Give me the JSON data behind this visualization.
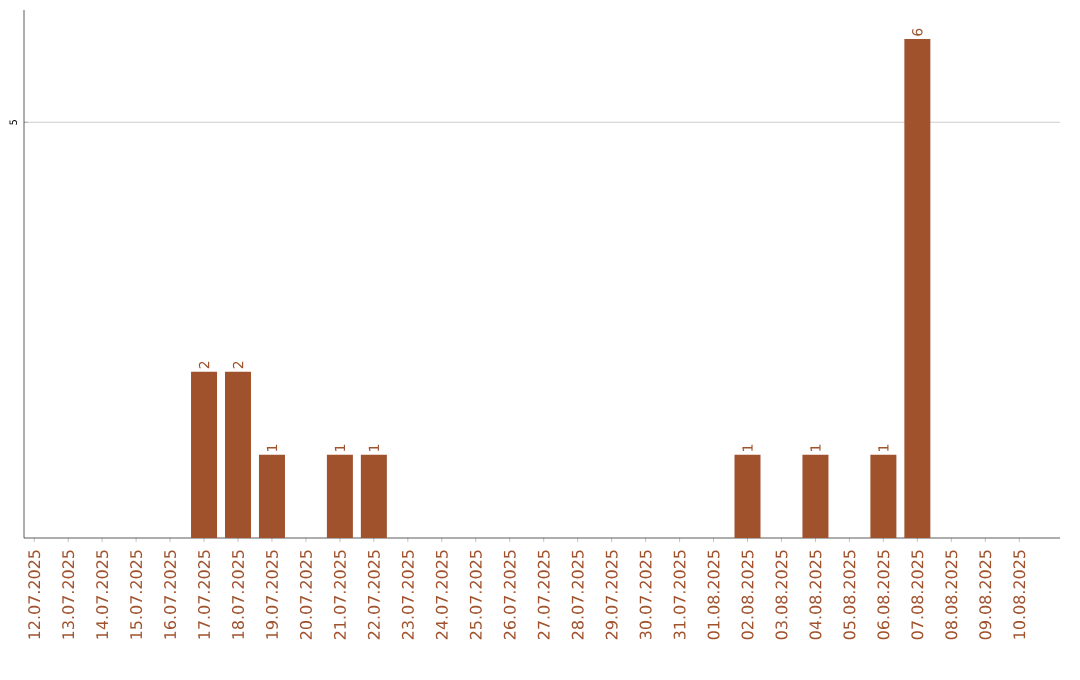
{
  "chart_data": {
    "type": "bar",
    "categories": [
      "12.07.2025",
      "13.07.2025",
      "14.07.2025",
      "15.07.2025",
      "16.07.2025",
      "17.07.2025",
      "18.07.2025",
      "19.07.2025",
      "20.07.2025",
      "21.07.2025",
      "22.07.2025",
      "23.07.2025",
      "24.07.2025",
      "25.07.2025",
      "26.07.2025",
      "27.07.2025",
      "28.07.2025",
      "29.07.2025",
      "30.07.2025",
      "31.07.2025",
      "01.08.2025",
      "02.08.2025",
      "03.08.2025",
      "04.08.2025",
      "05.08.2025",
      "06.08.2025",
      "07.08.2025",
      "08.08.2025",
      "09.08.2025",
      "10.08.2025"
    ],
    "values": [
      0,
      0,
      0,
      0,
      0,
      2,
      2,
      1,
      0,
      1,
      1,
      0,
      0,
      0,
      0,
      0,
      0,
      0,
      0,
      0,
      0,
      1,
      0,
      1,
      0,
      1,
      6,
      0,
      0,
      0
    ],
    "value_labels": [
      null,
      null,
      null,
      null,
      null,
      "2",
      "2",
      "1",
      null,
      "1",
      "1",
      null,
      null,
      null,
      null,
      null,
      null,
      null,
      null,
      null,
      null,
      "1",
      null,
      "1",
      null,
      "1",
      "6",
      null,
      null,
      null
    ],
    "color": "#a0522d",
    "ylim": [
      0,
      6.35
    ],
    "yticks": [
      5
    ],
    "grid": "y"
  }
}
